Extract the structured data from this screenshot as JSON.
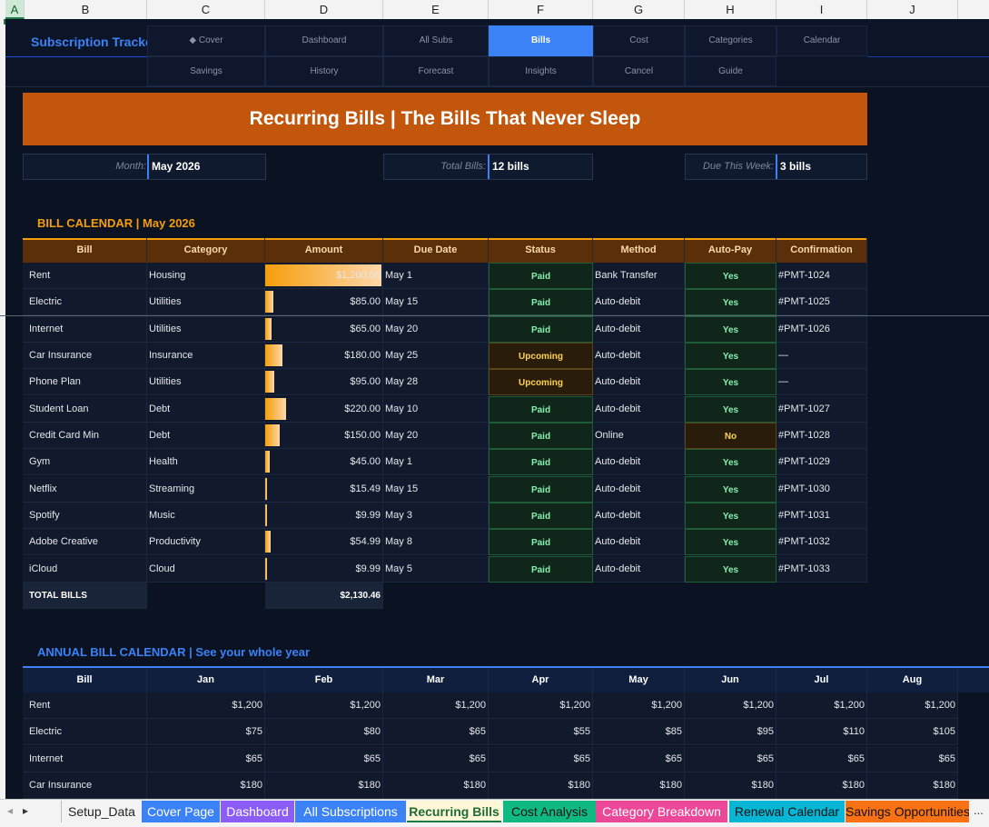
{
  "columns": [
    "A",
    "B",
    "C",
    "D",
    "E",
    "F",
    "G",
    "H",
    "I",
    "J"
  ],
  "brand": "Subscription Tracker",
  "nav_row1": [
    "◆ Cover",
    "Dashboard",
    "All Subs",
    "Bills",
    "Cost",
    "Categories",
    "Calendar"
  ],
  "nav_row2": [
    "Savings",
    "History",
    "Forecast",
    "Insights",
    "Cancel",
    "Guide"
  ],
  "banner": "Recurring Bills  |  The Bills That Never Sleep",
  "info": {
    "month_label": "Month:",
    "month_value": "May 2026",
    "total_label": "Total Bills:",
    "total_value": "12 bills",
    "due_label": "Due This Week:",
    "due_value": "3 bills"
  },
  "bill_calendar": {
    "title": "BILL CALENDAR  |  May 2026",
    "headers": [
      "Bill",
      "Category",
      "Amount",
      "Due Date",
      "Status",
      "Method",
      "Auto-Pay",
      "Confirmation"
    ],
    "rows": [
      {
        "bill": "Rent",
        "category": "Housing",
        "amount": "$1,200.00",
        "value": 1200,
        "due": "May 1",
        "status": "Paid",
        "method": "Bank Transfer",
        "autopay": "Yes",
        "conf": "#PMT-1024"
      },
      {
        "bill": "Electric",
        "category": "Utilities",
        "amount": "$85.00",
        "value": 85,
        "due": "May 15",
        "status": "Paid",
        "method": "Auto-debit",
        "autopay": "Yes",
        "conf": "#PMT-1025"
      },
      {
        "bill": "Internet",
        "category": "Utilities",
        "amount": "$65.00",
        "value": 65,
        "due": "May 20",
        "status": "Paid",
        "method": "Auto-debit",
        "autopay": "Yes",
        "conf": "#PMT-1026"
      },
      {
        "bill": "Car Insurance",
        "category": "Insurance",
        "amount": "$180.00",
        "value": 180,
        "due": "May 25",
        "status": "Upcoming",
        "method": "Auto-debit",
        "autopay": "Yes",
        "conf": "—"
      },
      {
        "bill": "Phone Plan",
        "category": "Utilities",
        "amount": "$95.00",
        "value": 95,
        "due": "May 28",
        "status": "Upcoming",
        "method": "Auto-debit",
        "autopay": "Yes",
        "conf": "—"
      },
      {
        "bill": "Student Loan",
        "category": "Debt",
        "amount": "$220.00",
        "value": 220,
        "due": "May 10",
        "status": "Paid",
        "method": "Auto-debit",
        "autopay": "Yes",
        "conf": "#PMT-1027"
      },
      {
        "bill": "Credit Card Min",
        "category": "Debt",
        "amount": "$150.00",
        "value": 150,
        "due": "May 20",
        "status": "Paid",
        "method": "Online",
        "autopay": "No",
        "conf": "#PMT-1028"
      },
      {
        "bill": "Gym",
        "category": "Health",
        "amount": "$45.00",
        "value": 45,
        "due": "May 1",
        "status": "Paid",
        "method": "Auto-debit",
        "autopay": "Yes",
        "conf": "#PMT-1029"
      },
      {
        "bill": "Netflix",
        "category": "Streaming",
        "amount": "$15.49",
        "value": 15.49,
        "due": "May 15",
        "status": "Paid",
        "method": "Auto-debit",
        "autopay": "Yes",
        "conf": "#PMT-1030"
      },
      {
        "bill": "Spotify",
        "category": "Music",
        "amount": "$9.99",
        "value": 9.99,
        "due": "May 3",
        "status": "Paid",
        "method": "Auto-debit",
        "autopay": "Yes",
        "conf": "#PMT-1031"
      },
      {
        "bill": "Adobe Creative",
        "category": "Productivity",
        "amount": "$54.99",
        "value": 54.99,
        "due": "May 8",
        "status": "Paid",
        "method": "Auto-debit",
        "autopay": "Yes",
        "conf": "#PMT-1032"
      },
      {
        "bill": "iCloud",
        "category": "Cloud",
        "amount": "$9.99",
        "value": 9.99,
        "due": "May 5",
        "status": "Paid",
        "method": "Auto-debit",
        "autopay": "Yes",
        "conf": "#PMT-1033"
      }
    ],
    "total_label": "TOTAL BILLS",
    "total_value": "$2,130.46"
  },
  "annual": {
    "title": "ANNUAL BILL CALENDAR  |  See your whole year",
    "headers": [
      "Bill",
      "Jan",
      "Feb",
      "Mar",
      "Apr",
      "May",
      "Jun",
      "Jul",
      "Aug"
    ],
    "rows": [
      [
        "Rent",
        "$1,200",
        "$1,200",
        "$1,200",
        "$1,200",
        "$1,200",
        "$1,200",
        "$1,200",
        "$1,200"
      ],
      [
        "Electric",
        "$75",
        "$80",
        "$65",
        "$55",
        "$85",
        "$95",
        "$110",
        "$105"
      ],
      [
        "Internet",
        "$65",
        "$65",
        "$65",
        "$65",
        "$65",
        "$65",
        "$65",
        "$65"
      ],
      [
        "Car Insurance",
        "$180",
        "$180",
        "$180",
        "$180",
        "$180",
        "$180",
        "$180",
        "$180"
      ]
    ]
  },
  "sheet_tabs": [
    {
      "label": "Setup_Data",
      "color": "#f3f3f3",
      "text": "#222"
    },
    {
      "label": "Cover Page",
      "color": "#3b82f6",
      "text": "#fff"
    },
    {
      "label": "Dashboard",
      "color": "#8b5cf6",
      "text": "#fff"
    },
    {
      "label": "All Subscriptions",
      "color": "#3b82f6",
      "text": "#fff"
    },
    {
      "label": "Recurring Bills",
      "color": "#fff7d6",
      "text": "#1e6b3a"
    },
    {
      "label": "Cost Analysis",
      "color": "#10b981",
      "text": "#111"
    },
    {
      "label": "Category Breakdown",
      "color": "#ec4899",
      "text": "#fff"
    },
    {
      "label": "Renewal Calendar",
      "color": "#06b6d4",
      "text": "#111"
    },
    {
      "label": "Savings Opportunities",
      "color": "#f97316",
      "text": "#111"
    }
  ],
  "more_tabs": "...",
  "colors": {
    "accent": "#3b82f6",
    "banner": "#c2560c",
    "gold": "#f59e0b"
  }
}
